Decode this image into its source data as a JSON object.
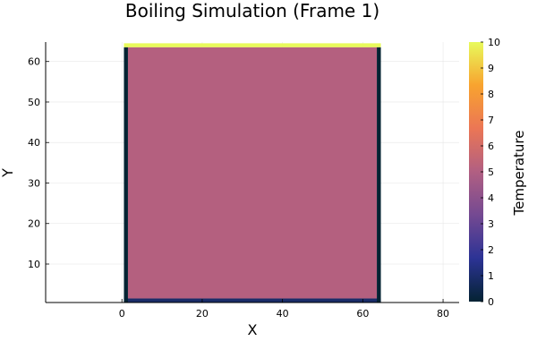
{
  "chart_data": {
    "type": "heatmap",
    "title": "Boiling Simulation (Frame 1)",
    "xlabel": "X",
    "ylabel": "Y",
    "xlim": [
      -19,
      84
    ],
    "ylim": [
      0.5,
      64.8
    ],
    "x_ticks": [
      0,
      20,
      40,
      60,
      80
    ],
    "y_ticks": [
      10,
      20,
      30,
      40,
      50,
      60
    ],
    "grid": true,
    "grid_x": 64,
    "grid_y": 64,
    "field": {
      "interior_value": 5.1,
      "top_boundary_value": 10,
      "bottom_boundary_value": 0.9,
      "side_boundary_value": 0
    },
    "colorbar": {
      "label": "Temperature",
      "min": 0,
      "max": 10,
      "ticks": [
        0,
        1,
        2,
        3,
        4,
        5,
        6,
        7,
        8,
        9,
        10
      ],
      "colormap": "thermal",
      "stops": [
        "#042333",
        "#2c3395",
        "#744992",
        "#b15f82",
        "#eb7655",
        "#f8a32f",
        "#e8fa5b"
      ]
    }
  }
}
